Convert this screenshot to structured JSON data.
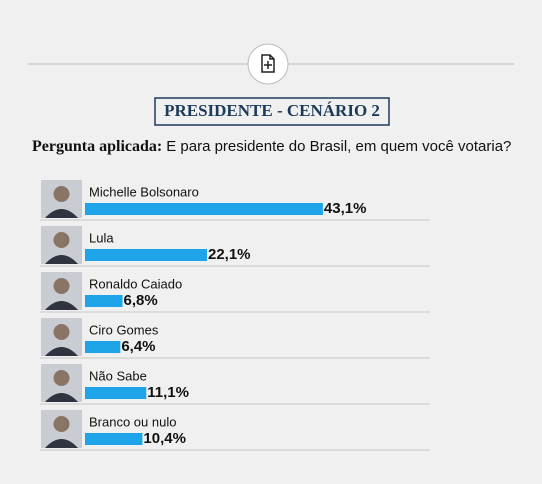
{
  "chart_data": {
    "type": "bar",
    "orientation": "horizontal",
    "title": "PRESIDENTE - CENÁRIO 2",
    "question_label": "Pergunta aplicada:",
    "question": "E para presidente do Brasil, em quem você votaria?",
    "categories": [
      "Michelle Bolsonaro",
      "Lula",
      "Ronaldo Caiado",
      "Ciro Gomes",
      "Não Sabe",
      "Branco ou nulo"
    ],
    "values": [
      43.1,
      22.1,
      6.8,
      6.4,
      11.1,
      10.4
    ],
    "value_labels": [
      "43,1%",
      "22,1%",
      "6,8%",
      "6,4%",
      "11,1%",
      "10,4%"
    ],
    "color": "#1ea5e9"
  }
}
